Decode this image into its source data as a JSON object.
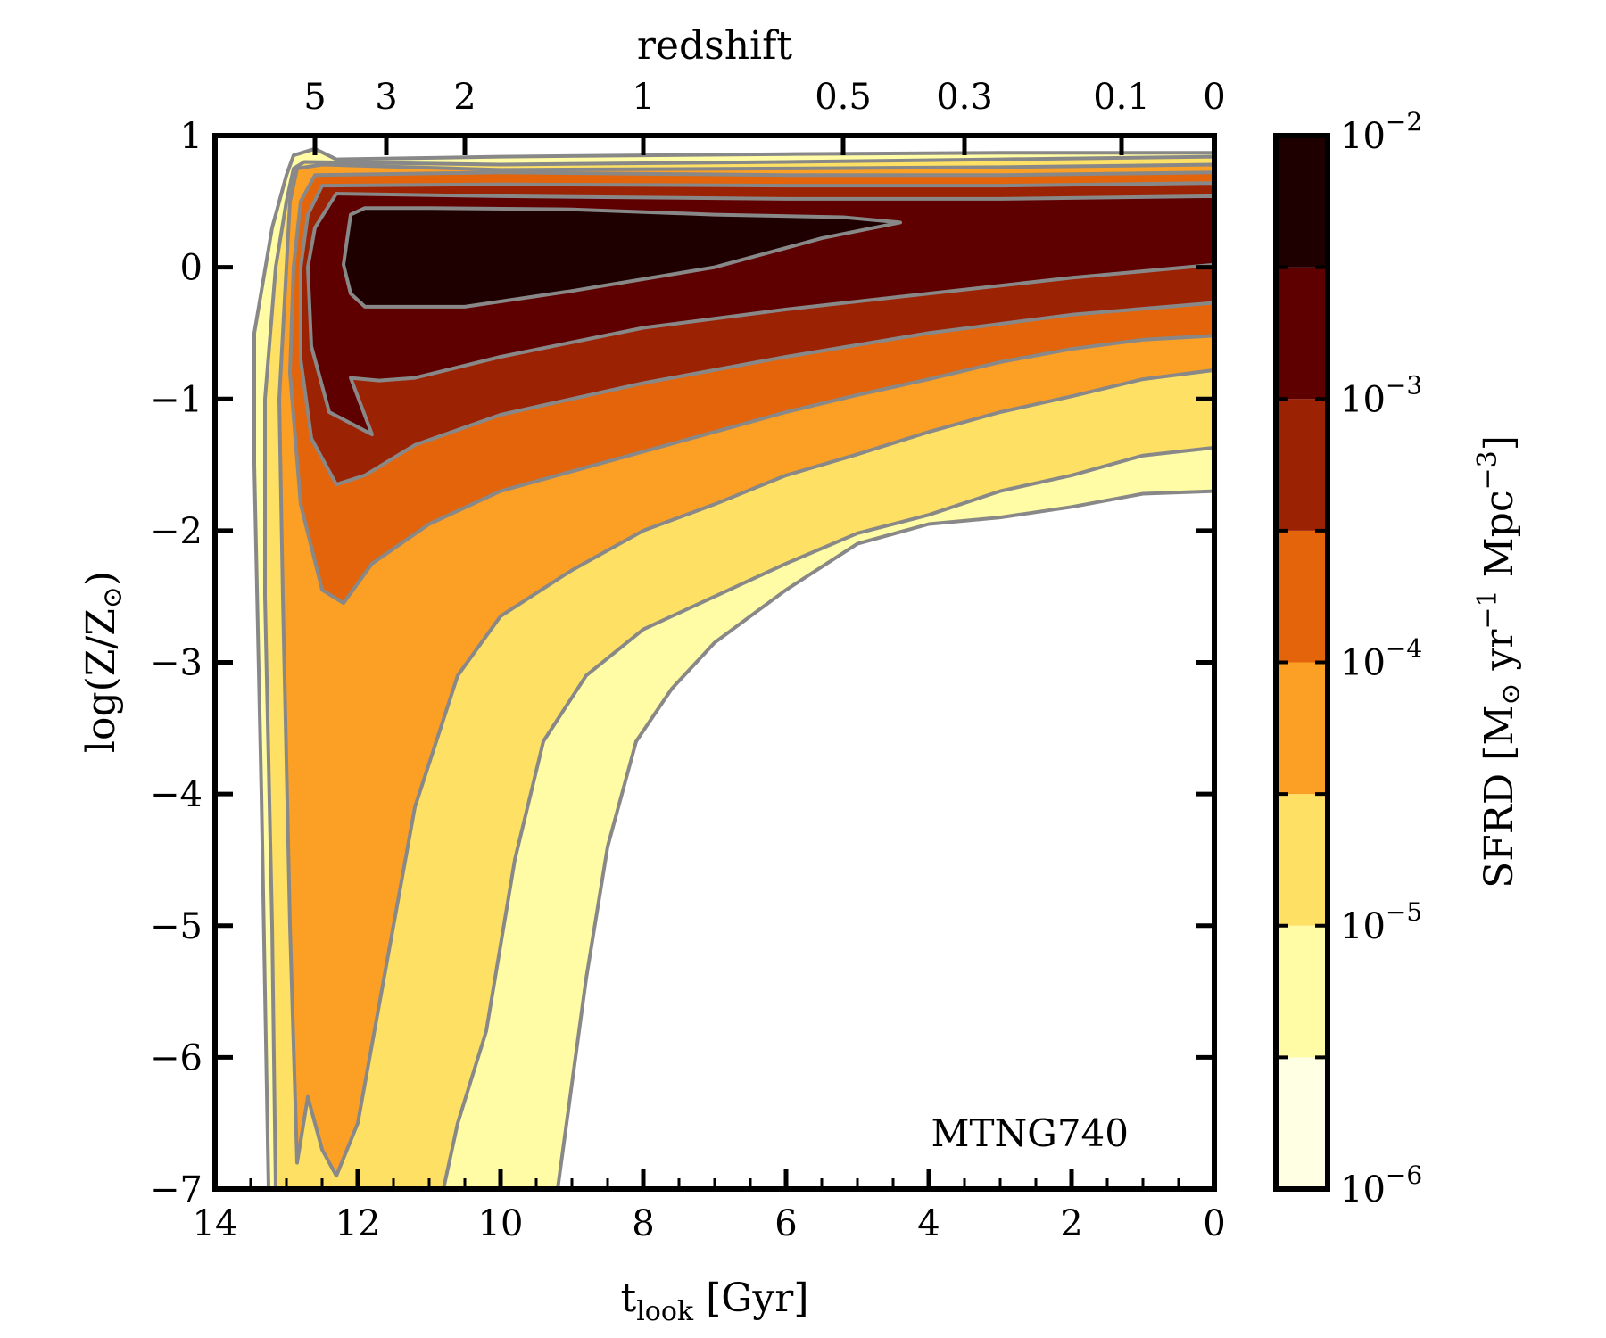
{
  "chart_data": {
    "type": "contour",
    "title": "",
    "annotation": "MTNG740",
    "x_bottom": {
      "label_main": "t",
      "label_sub": "look",
      "label_unit": "[Gyr]",
      "range": [
        14,
        0
      ],
      "ticks": [
        14,
        12,
        10,
        8,
        6,
        4,
        2,
        0
      ],
      "tick_labels": [
        "14",
        "12",
        "10",
        "8",
        "6",
        "4",
        "2",
        "0"
      ]
    },
    "x_top": {
      "label": "redshift",
      "ticks": [
        {
          "label": "5",
          "t": 12.6
        },
        {
          "label": "3",
          "t": 11.6
        },
        {
          "label": "2",
          "t": 10.5
        },
        {
          "label": "1",
          "t": 8.0
        },
        {
          "label": "0.5",
          "t": 5.2
        },
        {
          "label": "0.3",
          "t": 3.5
        },
        {
          "label": "0.1",
          "t": 1.3
        },
        {
          "label": "0",
          "t": 0.0
        }
      ]
    },
    "y": {
      "label_main": "log(Z/Z",
      "label_sun": "⊙",
      "label_close": ")",
      "range": [
        -7,
        1
      ],
      "ticks": [
        1,
        0,
        -1,
        -2,
        -3,
        -4,
        -5,
        -6,
        -7
      ],
      "tick_labels": [
        "1",
        "0",
        "−1",
        "−2",
        "−3",
        "−4",
        "−5",
        "−6",
        "−7"
      ]
    },
    "colorbar": {
      "label": "SFRD [M⊙ yr⁻¹ Mpc⁻³]",
      "label_parts": [
        "SFRD [M",
        "⊙",
        " yr",
        "−1",
        " Mpc",
        "−3",
        "]"
      ],
      "log_range": [
        -6,
        -2
      ],
      "tick_labels": [
        {
          "base": "10",
          "exp": "−2",
          "log": -2
        },
        {
          "base": "10",
          "exp": "−3",
          "log": -3
        },
        {
          "base": "10",
          "exp": "−4",
          "log": -4
        },
        {
          "base": "10",
          "exp": "−5",
          "log": -5
        },
        {
          "base": "10",
          "exp": "−6",
          "log": -6
        }
      ],
      "levels_log": [
        -6,
        -5.5,
        -5,
        -4.5,
        -4,
        -3.5,
        -3,
        -2.5,
        -2
      ],
      "colors": [
        "#ffffe4",
        "#fffca5",
        "#fde064",
        "#fc9f25",
        "#e3640a",
        "#9c2204",
        "#5e0000",
        "#1e0000"
      ]
    },
    "contour_color": "#888888",
    "contours": [
      {
        "level_log": -5.5,
        "points": [
          [
            13.25,
            -7
          ],
          [
            13.35,
            -4
          ],
          [
            13.45,
            -1.5
          ],
          [
            13.45,
            -0.5
          ],
          [
            13.2,
            0.3
          ],
          [
            13.0,
            0.7
          ],
          [
            12.9,
            0.85
          ],
          [
            12.6,
            0.9
          ],
          [
            12.3,
            0.82
          ],
          [
            10,
            0.84
          ],
          [
            6,
            0.86
          ],
          [
            3,
            0.87
          ],
          [
            0,
            0.87
          ],
          [
            0,
            -1.7
          ],
          [
            1,
            -1.72
          ],
          [
            2,
            -1.82
          ],
          [
            3,
            -1.9
          ],
          [
            4,
            -1.95
          ],
          [
            5,
            -2.1
          ],
          [
            6,
            -2.45
          ],
          [
            7,
            -2.85
          ],
          [
            7.6,
            -3.2
          ],
          [
            8.1,
            -3.6
          ],
          [
            8.5,
            -4.4
          ],
          [
            8.8,
            -5.4
          ],
          [
            9.0,
            -6.2
          ],
          [
            9.2,
            -7
          ]
        ]
      },
      {
        "level_log": -5.0,
        "points": [
          [
            13.15,
            -7
          ],
          [
            13.2,
            -5
          ],
          [
            13.3,
            -2.5
          ],
          [
            13.3,
            -1
          ],
          [
            13.15,
            0
          ],
          [
            13.0,
            0.5
          ],
          [
            12.9,
            0.75
          ],
          [
            12.75,
            0.8
          ],
          [
            10,
            0.78
          ],
          [
            6,
            0.8
          ],
          [
            3,
            0.82
          ],
          [
            0,
            0.84
          ],
          [
            0,
            -1.37
          ],
          [
            1,
            -1.43
          ],
          [
            2,
            -1.58
          ],
          [
            3,
            -1.7
          ],
          [
            4,
            -1.88
          ],
          [
            5,
            -2.02
          ],
          [
            6,
            -2.25
          ],
          [
            7,
            -2.5
          ],
          [
            8,
            -2.75
          ],
          [
            8.8,
            -3.1
          ],
          [
            9.4,
            -3.6
          ],
          [
            9.8,
            -4.5
          ],
          [
            10.2,
            -5.8
          ],
          [
            10.6,
            -6.5
          ],
          [
            10.8,
            -7
          ]
        ]
      },
      {
        "level_log": -4.5,
        "points": [
          [
            12.85,
            -6.8
          ],
          [
            12.95,
            -5
          ],
          [
            13.05,
            -2.5
          ],
          [
            13.1,
            -1
          ],
          [
            13.0,
            0
          ],
          [
            12.95,
            0.5
          ],
          [
            12.85,
            0.75
          ],
          [
            12.5,
            0.78
          ],
          [
            10,
            0.74
          ],
          [
            6,
            0.75
          ],
          [
            3,
            0.76
          ],
          [
            0,
            0.78
          ],
          [
            0,
            -0.78
          ],
          [
            1,
            -0.85
          ],
          [
            2,
            -0.98
          ],
          [
            3,
            -1.1
          ],
          [
            4,
            -1.25
          ],
          [
            5,
            -1.42
          ],
          [
            6,
            -1.58
          ],
          [
            7,
            -1.8
          ],
          [
            8,
            -2.0
          ],
          [
            9,
            -2.3
          ],
          [
            10,
            -2.65
          ],
          [
            10.6,
            -3.1
          ],
          [
            11.2,
            -4.1
          ],
          [
            11.6,
            -5.3
          ],
          [
            12.0,
            -6.5
          ],
          [
            12.3,
            -6.9
          ],
          [
            12.5,
            -6.7
          ],
          [
            12.7,
            -6.3
          ]
        ]
      },
      {
        "level_log": -4.0,
        "points": [
          [
            12.5,
            -2.45
          ],
          [
            12.8,
            -1.8
          ],
          [
            12.95,
            -0.8
          ],
          [
            12.9,
            0
          ],
          [
            12.8,
            0.5
          ],
          [
            12.6,
            0.7
          ],
          [
            10,
            0.72
          ],
          [
            6,
            0.7
          ],
          [
            3,
            0.7
          ],
          [
            0,
            0.72
          ],
          [
            0,
            -0.52
          ],
          [
            1,
            -0.55
          ],
          [
            2,
            -0.62
          ],
          [
            3,
            -0.72
          ],
          [
            4,
            -0.85
          ],
          [
            5,
            -0.97
          ],
          [
            6,
            -1.1
          ],
          [
            7,
            -1.25
          ],
          [
            8,
            -1.4
          ],
          [
            9,
            -1.55
          ],
          [
            10,
            -1.7
          ],
          [
            11,
            -1.95
          ],
          [
            11.8,
            -2.25
          ],
          [
            12.2,
            -2.55
          ]
        ]
      },
      {
        "level_log": -3.5,
        "points": [
          [
            12.3,
            -1.65
          ],
          [
            12.65,
            -1.3
          ],
          [
            12.8,
            -0.7
          ],
          [
            12.8,
            0
          ],
          [
            12.7,
            0.4
          ],
          [
            12.5,
            0.62
          ],
          [
            10,
            0.63
          ],
          [
            6,
            0.62
          ],
          [
            3,
            0.62
          ],
          [
            0,
            0.64
          ],
          [
            0,
            -0.27
          ],
          [
            2,
            -0.36
          ],
          [
            4,
            -0.5
          ],
          [
            6,
            -0.68
          ],
          [
            8,
            -0.88
          ],
          [
            10,
            -1.12
          ],
          [
            11.2,
            -1.35
          ],
          [
            11.9,
            -1.58
          ]
        ]
      },
      {
        "level_log": -3.0,
        "points": [
          [
            11.8,
            -1.27
          ],
          [
            12.4,
            -1.1
          ],
          [
            12.65,
            -0.6
          ],
          [
            12.7,
            0
          ],
          [
            12.6,
            0.3
          ],
          [
            12.3,
            0.56
          ],
          [
            10,
            0.54
          ],
          [
            6,
            0.52
          ],
          [
            3,
            0.52
          ],
          [
            0,
            0.54
          ],
          [
            0,
            0.02
          ],
          [
            2,
            -0.08
          ],
          [
            4,
            -0.2
          ],
          [
            6,
            -0.32
          ],
          [
            8,
            -0.46
          ],
          [
            10,
            -0.68
          ],
          [
            11.2,
            -0.84
          ],
          [
            11.7,
            -0.86
          ],
          [
            12.1,
            -0.84
          ]
        ]
      },
      {
        "level_log": -2.5,
        "points": [
          [
            12.1,
            0.4
          ],
          [
            12.2,
            0.02
          ],
          [
            12.1,
            -0.2
          ],
          [
            11.9,
            -0.3
          ],
          [
            11.3,
            -0.3
          ],
          [
            10.5,
            -0.3
          ],
          [
            9,
            -0.18
          ],
          [
            7,
            0
          ],
          [
            5.5,
            0.22
          ],
          [
            4.4,
            0.34
          ],
          [
            5.2,
            0.38
          ],
          [
            7,
            0.4
          ],
          [
            9,
            0.44
          ],
          [
            11,
            0.45
          ],
          [
            11.9,
            0.45
          ]
        ]
      }
    ]
  }
}
